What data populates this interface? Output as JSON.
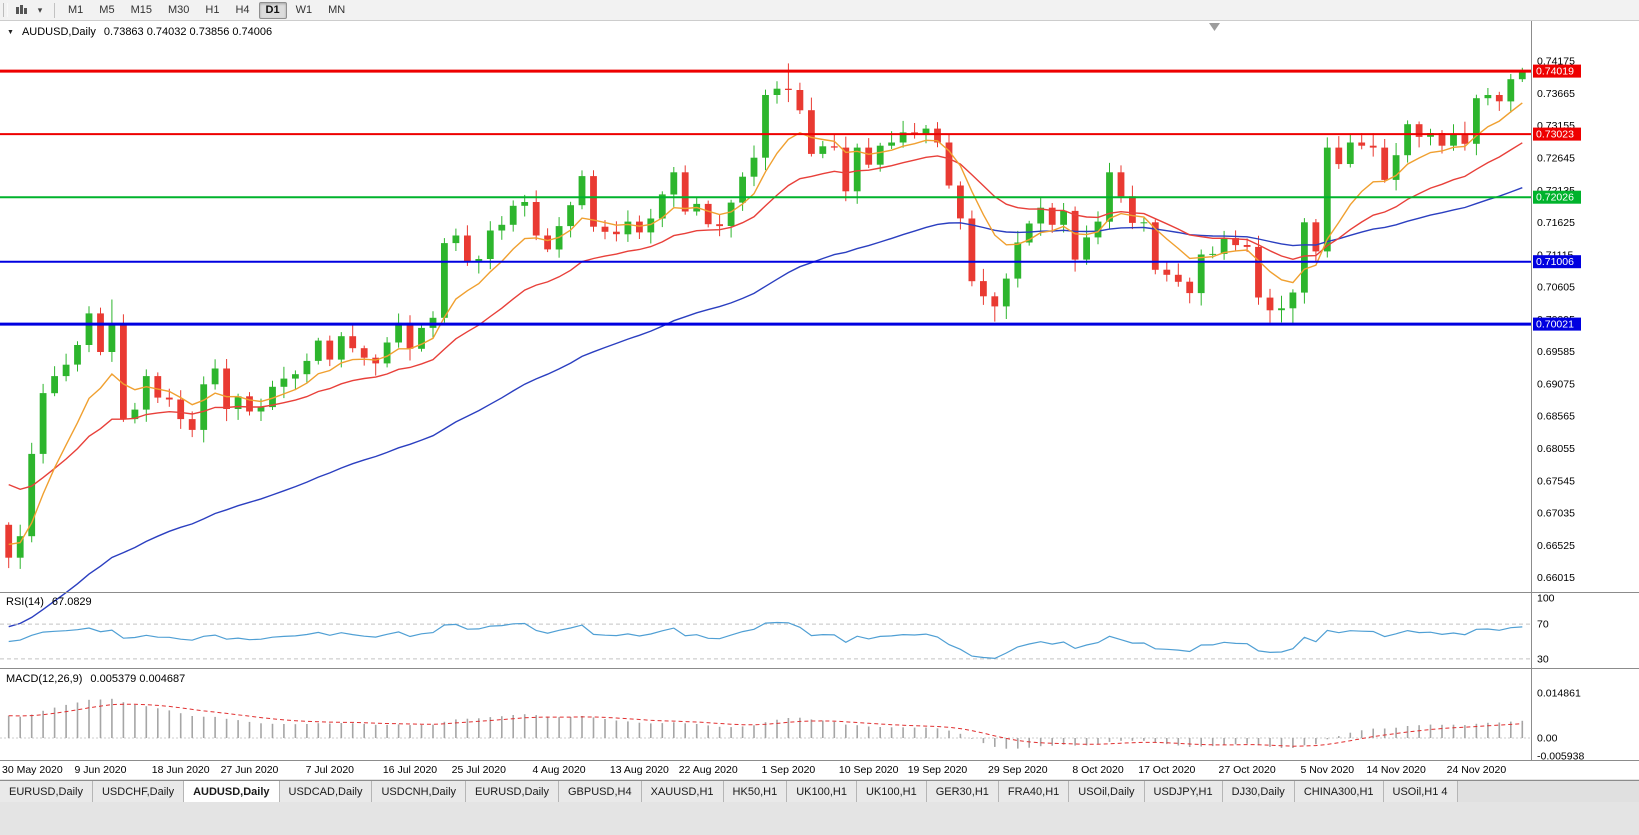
{
  "toolbar": {
    "timeframes": [
      "M1",
      "M5",
      "M15",
      "M30",
      "H1",
      "H4",
      "D1",
      "W1",
      "MN"
    ],
    "active_timeframe": "D1"
  },
  "chart": {
    "title": "AUDUSD,Daily",
    "ohlc": "0.73863 0.74032 0.73856 0.74006"
  },
  "rsi": {
    "label": "RSI(14)",
    "value": "67.0829",
    "levels": [
      "100",
      "70",
      "30"
    ],
    "level_values": [
      100,
      70,
      30
    ],
    "line_color": "#4f9fd4"
  },
  "macd": {
    "label": "MACD(12,26,9)",
    "values": "0.005379 0.004687",
    "axis": [
      "0.014861",
      "0.00",
      "-0.005938"
    ],
    "axis_values": [
      0.014861,
      0,
      -0.005938
    ],
    "histogram_color": "#a6a6a6",
    "signal_color": "#e03030"
  },
  "hlines": [
    {
      "price": 0.74019,
      "label": "0.74019",
      "color": "#ee0000",
      "width": 3
    },
    {
      "price": 0.73023,
      "label": "0.73023",
      "color": "#ee0000",
      "width": 2
    },
    {
      "price": 0.72026,
      "label": "0.72026",
      "color": "#00b32c",
      "width": 2
    },
    {
      "price": 0.71006,
      "label": "0.71006",
      "color": "#0000e0",
      "width": 2
    },
    {
      "price": 0.70021,
      "label": "0.70021",
      "color": "#0000e0",
      "width": 3
    }
  ],
  "tabs": {
    "items": [
      "EURUSD,Daily",
      "USDCHF,Daily",
      "AUDUSD,Daily",
      "USDCAD,Daily",
      "USDCNH,Daily",
      "EURUSD,Daily",
      "GBPUSD,H4",
      "XAUUSD,H1",
      "HK50,H1",
      "UK100,H1",
      "UK100,H1",
      "GER30,H1",
      "FRA40,H1",
      "USOil,Daily",
      "USDJPY,H1",
      "DJ30,Daily",
      "CHINA300,H1",
      "USOil,H1 4"
    ],
    "active_index": 2
  },
  "chart_data": {
    "type": "candlestick",
    "symbol": "AUDUSD",
    "timeframe": "Daily",
    "current_bar": {
      "open": 0.73863,
      "high": 0.74032,
      "low": 0.73856,
      "close": 0.74006
    },
    "first_open": 0.6685,
    "closes": [
      0.6633,
      0.6667,
      0.6797,
      0.6893,
      0.692,
      0.6938,
      0.6969,
      0.7019,
      0.6958,
      0.7001,
      0.6852,
      0.6867,
      0.692,
      0.6886,
      0.6883,
      0.6852,
      0.6835,
      0.6907,
      0.6932,
      0.6868,
      0.6888,
      0.6864,
      0.6871,
      0.6903,
      0.6916,
      0.6923,
      0.6944,
      0.6976,
      0.6946,
      0.6983,
      0.6964,
      0.6949,
      0.694,
      0.6973,
      0.7004,
      0.6963,
      0.6996,
      0.7012,
      0.713,
      0.7142,
      0.7101,
      0.7105,
      0.715,
      0.7159,
      0.7189,
      0.7195,
      0.7142,
      0.712,
      0.7157,
      0.719,
      0.7236,
      0.7156,
      0.7148,
      0.7144,
      0.7164,
      0.7147,
      0.7169,
      0.7207,
      0.7242,
      0.718,
      0.7192,
      0.716,
      0.7157,
      0.7194,
      0.7235,
      0.7265,
      0.7364,
      0.7374,
      0.7372,
      0.734,
      0.7271,
      0.7283,
      0.7281,
      0.7212,
      0.7281,
      0.7254,
      0.7284,
      0.7289,
      0.7305,
      0.7301,
      0.7311,
      0.7289,
      0.7221,
      0.7169,
      0.707,
      0.7046,
      0.703,
      0.7074,
      0.7131,
      0.7161,
      0.7186,
      0.7159,
      0.7181,
      0.7104,
      0.7139,
      0.7164,
      0.7242,
      0.7204,
      0.7162,
      0.7163,
      0.7088,
      0.708,
      0.7069,
      0.7051,
      0.7112,
      0.7113,
      0.7138,
      0.7127,
      0.7124,
      0.7044,
      0.7024,
      0.7027,
      0.7052,
      0.7163,
      0.7117,
      0.7281,
      0.7255,
      0.7289,
      0.7284,
      0.7281,
      0.723,
      0.7269,
      0.7318,
      0.7298,
      0.7304,
      0.7284,
      0.7302,
      0.7287,
      0.7359,
      0.7364,
      0.7354,
      0.7389,
      0.74006
    ],
    "wick_overrides": {
      "9": {
        "high": 0.7041
      },
      "68": {
        "high": 0.7414
      },
      "86": {
        "low": 0.7006
      },
      "112": {
        "low": 0.7002
      },
      "132": {
        "high": 0.7407
      }
    },
    "moving_averages": [
      {
        "period": 55,
        "color": "#2b3fc0",
        "seed": 0.652
      },
      {
        "period": 21,
        "color": "#e8403a",
        "seed": 0.676
      },
      {
        "period": 8,
        "color": "#f0a030",
        "seed": 0.666
      }
    ],
    "up_color": "#2db52d",
    "down_color": "#e93a32",
    "y_ticks": {
      "labels": [
        "0.74175",
        "0.73665",
        "0.73155",
        "0.72645",
        "0.72135",
        "0.71625",
        "0.71115",
        "0.70605",
        "0.70095",
        "0.69585",
        "0.69075",
        "0.68565",
        "0.68055",
        "0.67545",
        "0.67035",
        "0.66525",
        "0.66015"
      ],
      "values": [
        0.74175,
        0.73665,
        0.73155,
        0.72645,
        0.72135,
        0.71625,
        0.71115,
        0.70605,
        0.70095,
        0.69585,
        0.69075,
        0.68565,
        0.68055,
        0.67545,
        0.67035,
        0.66525,
        0.66015
      ]
    },
    "x_labels": [
      {
        "text": "30 May 2020",
        "index": 1
      },
      {
        "text": "9 Jun 2020",
        "index": 8
      },
      {
        "text": "18 Jun 2020",
        "index": 15
      },
      {
        "text": "27 Jun 2020",
        "index": 21
      },
      {
        "text": "7 Jul 2020",
        "index": 28
      },
      {
        "text": "16 Jul 2020",
        "index": 35
      },
      {
        "text": "25 Jul 2020",
        "index": 41
      },
      {
        "text": "4 Aug 2020",
        "index": 48
      },
      {
        "text": "13 Aug 2020",
        "index": 55
      },
      {
        "text": "22 Aug 2020",
        "index": 61
      },
      {
        "text": "1 Sep 2020",
        "index": 68
      },
      {
        "text": "10 Sep 2020",
        "index": 75
      },
      {
        "text": "19 Sep 2020",
        "index": 81
      },
      {
        "text": "29 Sep 2020",
        "index": 88
      },
      {
        "text": "8 Oct 2020",
        "index": 95
      },
      {
        "text": "17 Oct 2020",
        "index": 101
      },
      {
        "text": "27 Oct 2020",
        "index": 108
      },
      {
        "text": "5 Nov 2020",
        "index": 115
      },
      {
        "text": "14 Nov 2020",
        "index": 121
      },
      {
        "text": "24 Nov 2020",
        "index": 128
      }
    ]
  }
}
